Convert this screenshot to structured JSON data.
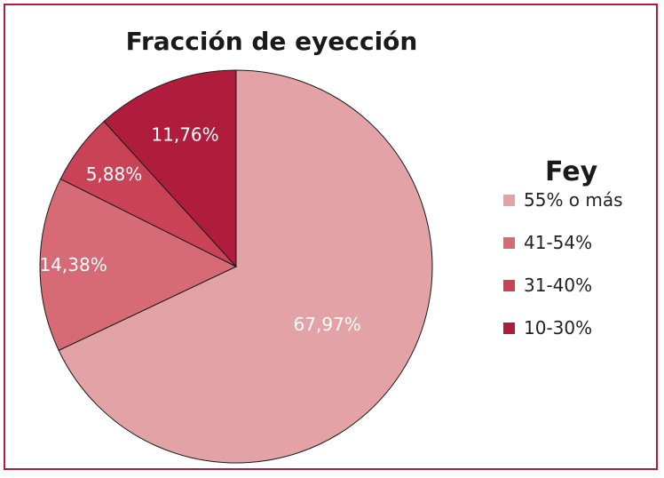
{
  "chart_data": {
    "type": "pie",
    "title": "Fracción de eyección",
    "legend_title": "Fey",
    "legend_position": "right",
    "slices": [
      {
        "name": "55% o más",
        "value": 67.97,
        "label": "67,97%",
        "color": "#e3a3a6"
      },
      {
        "name": "41-54%",
        "value": 14.38,
        "label": "14,38%",
        "color": "#d66b76"
      },
      {
        "name": "31-40%",
        "value": 5.88,
        "label": "5,88%",
        "color": "#c94256"
      },
      {
        "name": "10-30%",
        "value": 11.76,
        "label": "11,76%",
        "color": "#b01c3c"
      }
    ]
  }
}
